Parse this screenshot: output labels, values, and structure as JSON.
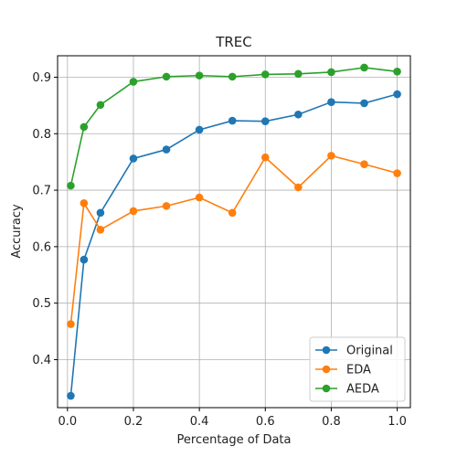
{
  "chart_data": {
    "type": "line",
    "title": "TREC",
    "xlabel": "Percentage of Data",
    "ylabel": "Accuracy",
    "xlim": [
      -0.03,
      1.04
    ],
    "ylim": [
      0.315,
      0.938
    ],
    "xticks": [
      0.0,
      0.2,
      0.4,
      0.6,
      0.8,
      1.0
    ],
    "xtick_labels": [
      "0.0",
      "0.2",
      "0.4",
      "0.6",
      "0.8",
      "1.0"
    ],
    "yticks": [
      0.4,
      0.5,
      0.6,
      0.7,
      0.8,
      0.9
    ],
    "ytick_labels": [
      "0.4",
      "0.5",
      "0.6",
      "0.7",
      "0.8",
      "0.9"
    ],
    "grid": true,
    "legend": "bottom-right",
    "x": [
      0.01,
      0.05,
      0.1,
      0.2,
      0.3,
      0.4,
      0.5,
      0.6,
      0.7,
      0.8,
      0.9,
      1.0
    ],
    "series": [
      {
        "name": "Original",
        "color": "#1f77b4",
        "values": [
          0.336,
          0.577,
          0.66,
          0.756,
          0.772,
          0.807,
          0.823,
          0.822,
          0.834,
          0.856,
          0.854,
          0.87
        ]
      },
      {
        "name": "EDA",
        "color": "#ff7f0e",
        "values": [
          0.463,
          0.677,
          0.63,
          0.663,
          0.672,
          0.687,
          0.66,
          0.758,
          0.705,
          0.761,
          0.746,
          0.73
        ]
      },
      {
        "name": "AEDA",
        "color": "#2ca02c",
        "values": [
          0.708,
          0.812,
          0.851,
          0.892,
          0.901,
          0.903,
          0.901,
          0.905,
          0.906,
          0.909,
          0.917,
          0.91
        ]
      }
    ]
  }
}
